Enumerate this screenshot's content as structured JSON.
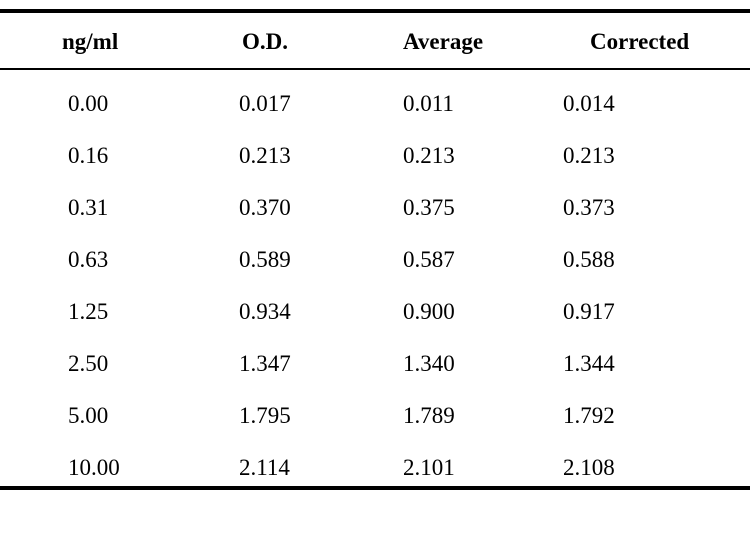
{
  "table": {
    "headers": [
      "ng/ml",
      "O.D.",
      "Average",
      "Corrected"
    ],
    "rows": [
      [
        "0.00",
        "0.017",
        "0.011",
        "0.014"
      ],
      [
        "0.16",
        "0.213",
        "0.213",
        "0.213"
      ],
      [
        "0.31",
        "0.370",
        "0.375",
        "0.373"
      ],
      [
        "0.63",
        "0.589",
        "0.587",
        "0.588"
      ],
      [
        "1.25",
        "0.934",
        "0.900",
        "0.917"
      ],
      [
        "2.50",
        "1.347",
        "1.340",
        "1.344"
      ],
      [
        "5.00",
        "1.795",
        "1.789",
        "1.792"
      ],
      [
        "10.00",
        "2.114",
        "2.101",
        "2.108"
      ]
    ]
  }
}
